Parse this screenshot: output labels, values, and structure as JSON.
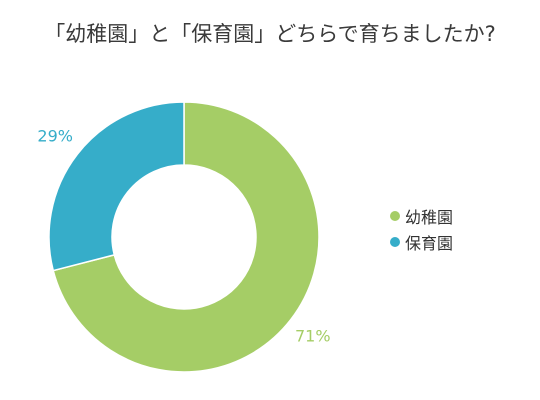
{
  "chart_data": {
    "type": "pie",
    "variant": "donut",
    "title": "「幼稚園」と「保育園」どちらで育ちましたか?",
    "slices": [
      {
        "name": "幼稚園",
        "value": 71,
        "label": "71%",
        "color": "#a5cd66"
      },
      {
        "name": "保育園",
        "value": 29,
        "label": "29%",
        "color": "#36adc9"
      }
    ],
    "legend_placement": "right"
  }
}
